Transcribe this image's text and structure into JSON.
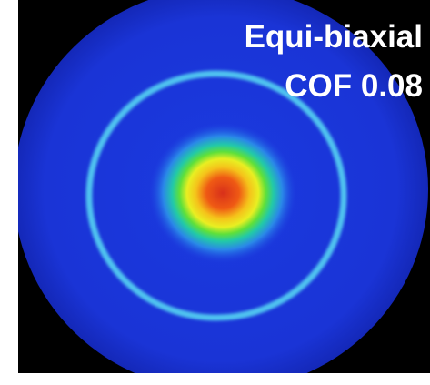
{
  "label": {
    "line1": "Equi-biaxial",
    "line2": "COF 0.08"
  }
}
